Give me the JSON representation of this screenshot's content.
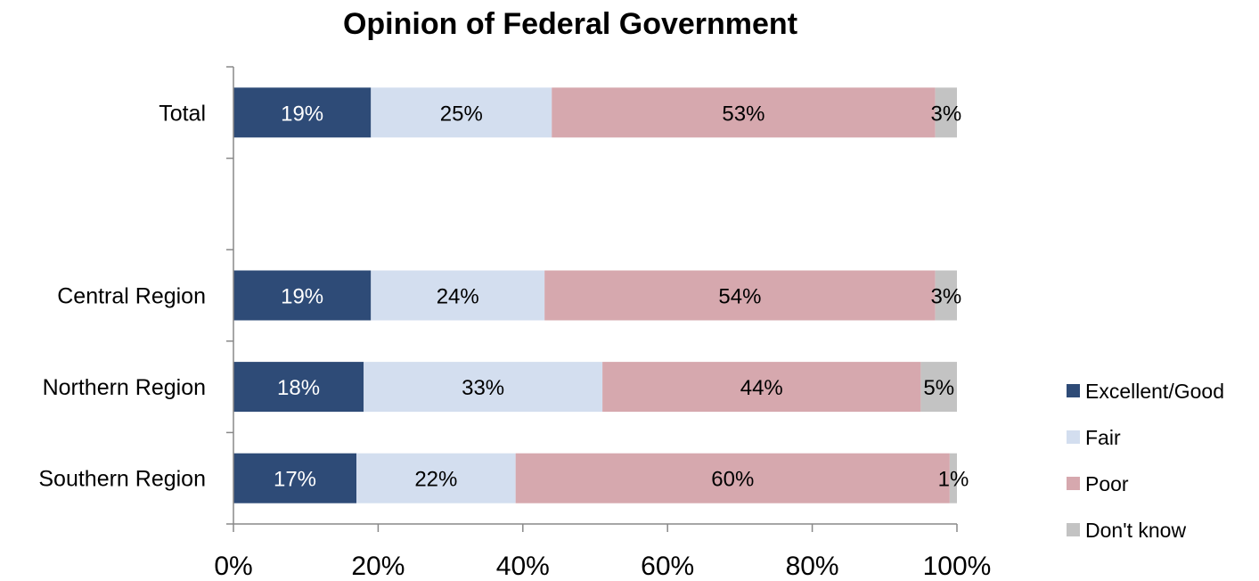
{
  "chart_data": {
    "type": "bar",
    "orientation": "horizontal",
    "stacked": true,
    "title": "Opinion of Federal Government",
    "xlabel": "",
    "ylabel": "",
    "categories": [
      "Total",
      "",
      "Central Region",
      "Northern Region",
      "Southern Region"
    ],
    "series": [
      {
        "name": "Excellent/Good",
        "color": "#2e4b77",
        "values": [
          19,
          null,
          19,
          18,
          17
        ],
        "labels": [
          "19%",
          "",
          "19%",
          "18%",
          "17%"
        ]
      },
      {
        "name": "Fair",
        "color": "#d3deef",
        "values": [
          25,
          null,
          24,
          33,
          22
        ],
        "labels": [
          "25%",
          "",
          "24%",
          "33%",
          "22%"
        ]
      },
      {
        "name": "Poor",
        "color": "#d6a8ae",
        "values": [
          53,
          null,
          54,
          44,
          60
        ],
        "labels": [
          "53%",
          "",
          "54%",
          "44%",
          "60%"
        ]
      },
      {
        "name": "Don't know",
        "color": "#c3c3c3",
        "values": [
          3,
          null,
          3,
          5,
          1
        ],
        "labels": [
          "3%",
          "",
          "3%",
          "5%",
          "1%"
        ]
      }
    ],
    "xlim": [
      0,
      100
    ],
    "xticks": [
      0,
      20,
      40,
      60,
      80,
      100
    ],
    "xtick_labels": [
      "0%",
      "20%",
      "40%",
      "60%",
      "80%",
      "100%"
    ],
    "legend_position": "right",
    "grid": false
  }
}
